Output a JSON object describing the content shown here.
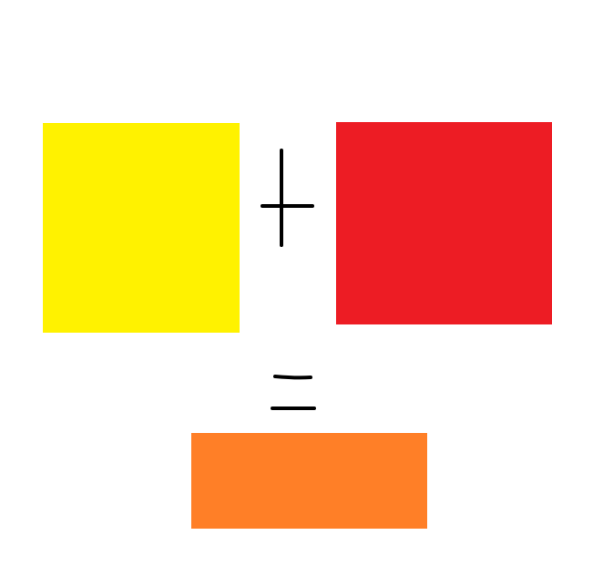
{
  "colors": {
    "background": "#ffffff",
    "yellow": "#fff200",
    "red": "#ed1c24",
    "orange": "#ff7f27",
    "ink": "#000000"
  },
  "equation": {
    "left_operand": "yellow",
    "operator": "+",
    "right_operand": "red",
    "equals": "=",
    "result": "orange"
  }
}
